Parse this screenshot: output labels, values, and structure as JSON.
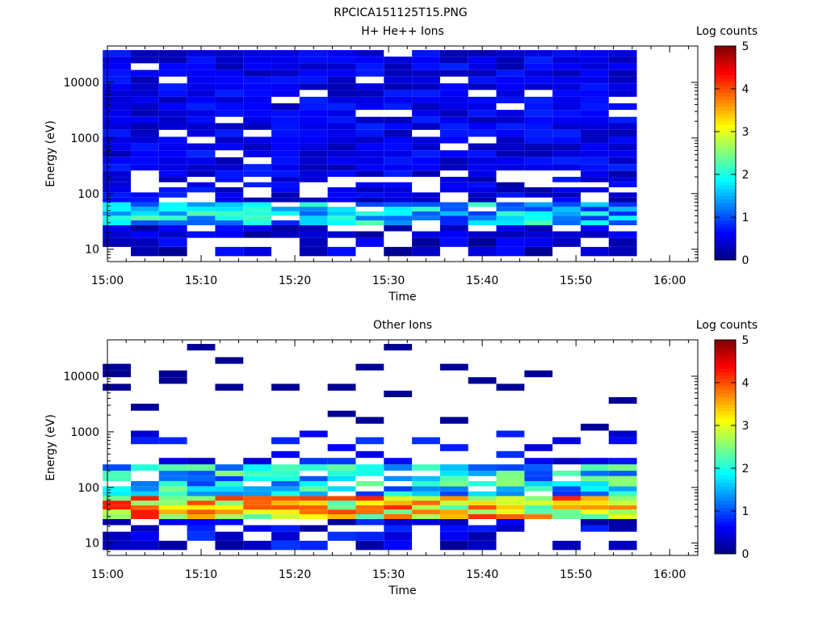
{
  "figure_title": "RPCICA151125T15.PNG",
  "chart_data": [
    {
      "type": "heatmap",
      "title": "H+ He++ Ions",
      "xlabel": "Time",
      "ylabel": "Energy (eV)",
      "colorbar_label": "Log counts",
      "colorbar_ticks": [
        "0",
        "1",
        "2",
        "3",
        "4",
        "5"
      ],
      "colorbar_range": [
        0,
        5
      ],
      "colormap": "jet",
      "x_ticks": [
        "15:00",
        "15:10",
        "15:20",
        "15:30",
        "15:40",
        "15:50",
        "16:00"
      ],
      "y_ticks": [
        "10",
        "100",
        "1000",
        "10000"
      ],
      "y_scale": "log",
      "ylim": [
        6,
        45000
      ],
      "xlim": [
        "15:00",
        "16:03"
      ],
      "x_bins": [
        "15:01",
        "15:04",
        "15:07",
        "15:10",
        "15:13",
        "15:16",
        "15:19",
        "15:22",
        "15:25",
        "15:28",
        "15:31",
        "15:34",
        "15:37",
        "15:40",
        "15:43",
        "15:46",
        "15:49",
        "15:52",
        "15:55",
        "15:58"
      ],
      "energy_bins_eV": [
        7.5,
        11,
        16,
        21,
        27,
        33,
        40,
        48,
        58,
        70,
        85,
        105,
        130,
        160,
        200,
        260,
        340,
        450,
        600,
        800,
        1050,
        1400,
        1850,
        2400,
        3200,
        4200,
        5500,
        7300,
        9600,
        12700,
        16700,
        22000,
        29000,
        38000
      ],
      "note": "lower energies show moderate counts (log 1-2.3) near 30-60 eV; higher energies uniformly low (log 0.2-0.8); last bin empty"
    },
    {
      "type": "heatmap",
      "title": "Other Ions",
      "xlabel": "Time",
      "ylabel": "Energy (eV)",
      "colorbar_label": "Log counts",
      "colorbar_ticks": [
        "0",
        "1",
        "2",
        "3",
        "4",
        "5"
      ],
      "colorbar_range": [
        0,
        5
      ],
      "colormap": "jet",
      "x_ticks": [
        "15:00",
        "15:10",
        "15:20",
        "15:30",
        "15:40",
        "15:50",
        "16:00"
      ],
      "y_ticks": [
        "10",
        "100",
        "1000",
        "10000"
      ],
      "y_scale": "log",
      "ylim": [
        6,
        45000
      ],
      "xlim": [
        "15:00",
        "16:03"
      ],
      "note": "strong band (log 2.5-4.3) between ~25 and 60 eV; sparse low-count streaks above 1000 eV"
    }
  ]
}
